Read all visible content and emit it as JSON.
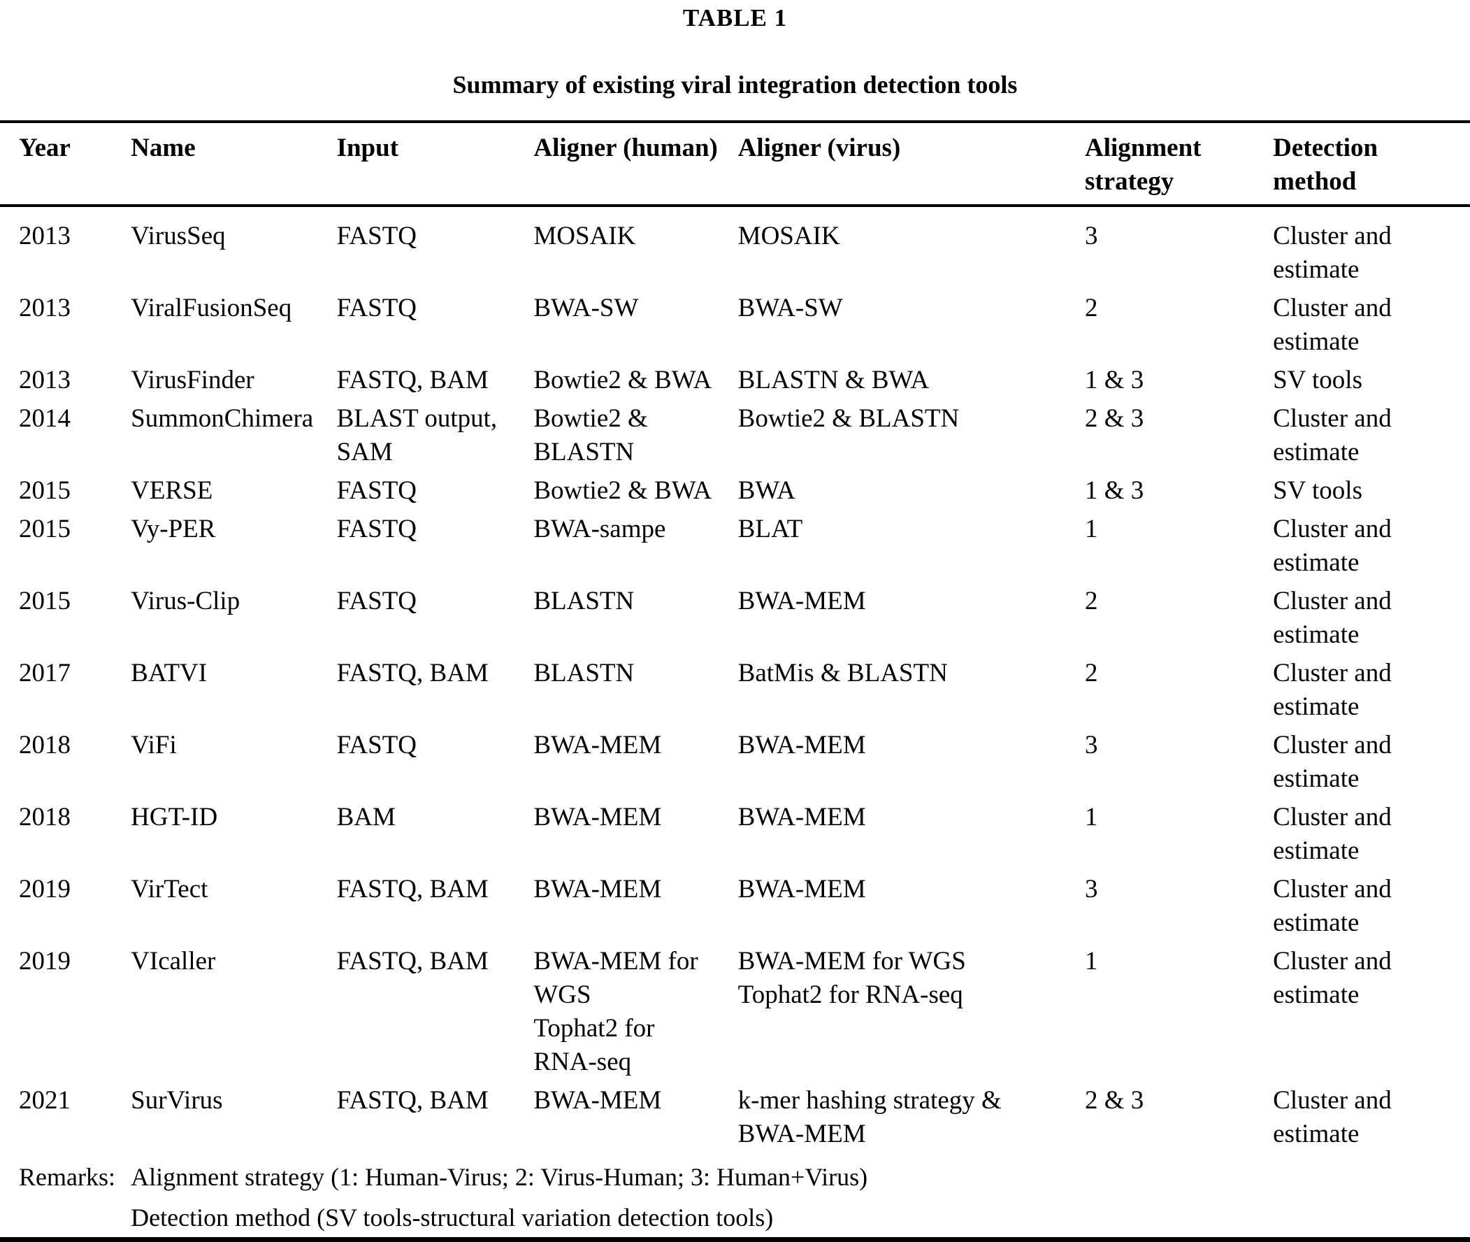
{
  "title": "TABLE 1",
  "subtitle": "Summary of existing viral integration detection tools",
  "table": {
    "columns": [
      {
        "label": "Year"
      },
      {
        "label": "Name"
      },
      {
        "label": "Input"
      },
      {
        "label": "Aligner (human)"
      },
      {
        "label": "Aligner (virus)"
      },
      {
        "label": "Alignment\nstrategy"
      },
      {
        "label": "Detection\nmethod"
      }
    ],
    "rows": [
      {
        "cells": [
          "2013",
          "VirusSeq",
          "FASTQ",
          "MOSAIK",
          "MOSAIK",
          "3",
          "Cluster and\nestimate"
        ]
      },
      {
        "cells": [
          "2013",
          "ViralFusionSeq",
          "FASTQ",
          "BWA-SW",
          "BWA-SW",
          "2",
          "Cluster and\nestimate"
        ]
      },
      {
        "cells": [
          "2013",
          "VirusFinder",
          "FASTQ, BAM",
          "Bowtie2 & BWA",
          "BLASTN & BWA",
          "1 & 3",
          "SV tools"
        ]
      },
      {
        "cells": [
          "2014",
          "SummonChimera",
          "BLAST output,\nSAM",
          "Bowtie2 &\nBLASTN",
          "Bowtie2 & BLASTN",
          "2 & 3",
          "Cluster and\nestimate"
        ]
      },
      {
        "cells": [
          "2015",
          "VERSE",
          "FASTQ",
          "Bowtie2 & BWA",
          "BWA",
          "1 & 3",
          "SV tools"
        ]
      },
      {
        "cells": [
          "2015",
          "Vy-PER",
          "FASTQ",
          "BWA-sampe",
          "BLAT",
          "1",
          "Cluster and\nestimate"
        ]
      },
      {
        "cells": [
          "2015",
          "Virus-Clip",
          "FASTQ",
          "BLASTN",
          "BWA-MEM",
          "2",
          "Cluster and\nestimate"
        ]
      },
      {
        "cells": [
          "2017",
          "BATVI",
          "FASTQ, BAM",
          "BLASTN",
          "BatMis & BLASTN",
          "2",
          "Cluster and\nestimate"
        ]
      },
      {
        "cells": [
          "2018",
          "ViFi",
          "FASTQ",
          "BWA-MEM",
          "BWA-MEM",
          "3",
          "Cluster and\nestimate"
        ]
      },
      {
        "cells": [
          "2018",
          "HGT-ID",
          "BAM",
          "BWA-MEM",
          "BWA-MEM",
          "1",
          "Cluster and\nestimate"
        ]
      },
      {
        "cells": [
          "2019",
          "VirTect",
          "FASTQ, BAM",
          "BWA-MEM",
          "BWA-MEM",
          "3",
          "Cluster and\nestimate"
        ]
      },
      {
        "cells": [
          "2019",
          "VIcaller",
          "FASTQ, BAM",
          "BWA-MEM for\nWGS\nTophat2 for\nRNA-seq",
          "BWA-MEM for WGS\nTophat2 for RNA-seq",
          "1",
          "Cluster and\nestimate"
        ]
      },
      {
        "cells": [
          "2021",
          "SurVirus",
          "FASTQ, BAM",
          "BWA-MEM",
          "k-mer hashing strategy &\nBWA-MEM",
          "2 & 3",
          "Cluster and\nestimate"
        ]
      }
    ],
    "remarks": {
      "label": "Remarks:",
      "lines": [
        "Alignment strategy (1: Human-Virus; 2: Virus-Human; 3: Human+Virus)",
        "Detection method (SV tools-structural variation detection tools)"
      ]
    }
  }
}
